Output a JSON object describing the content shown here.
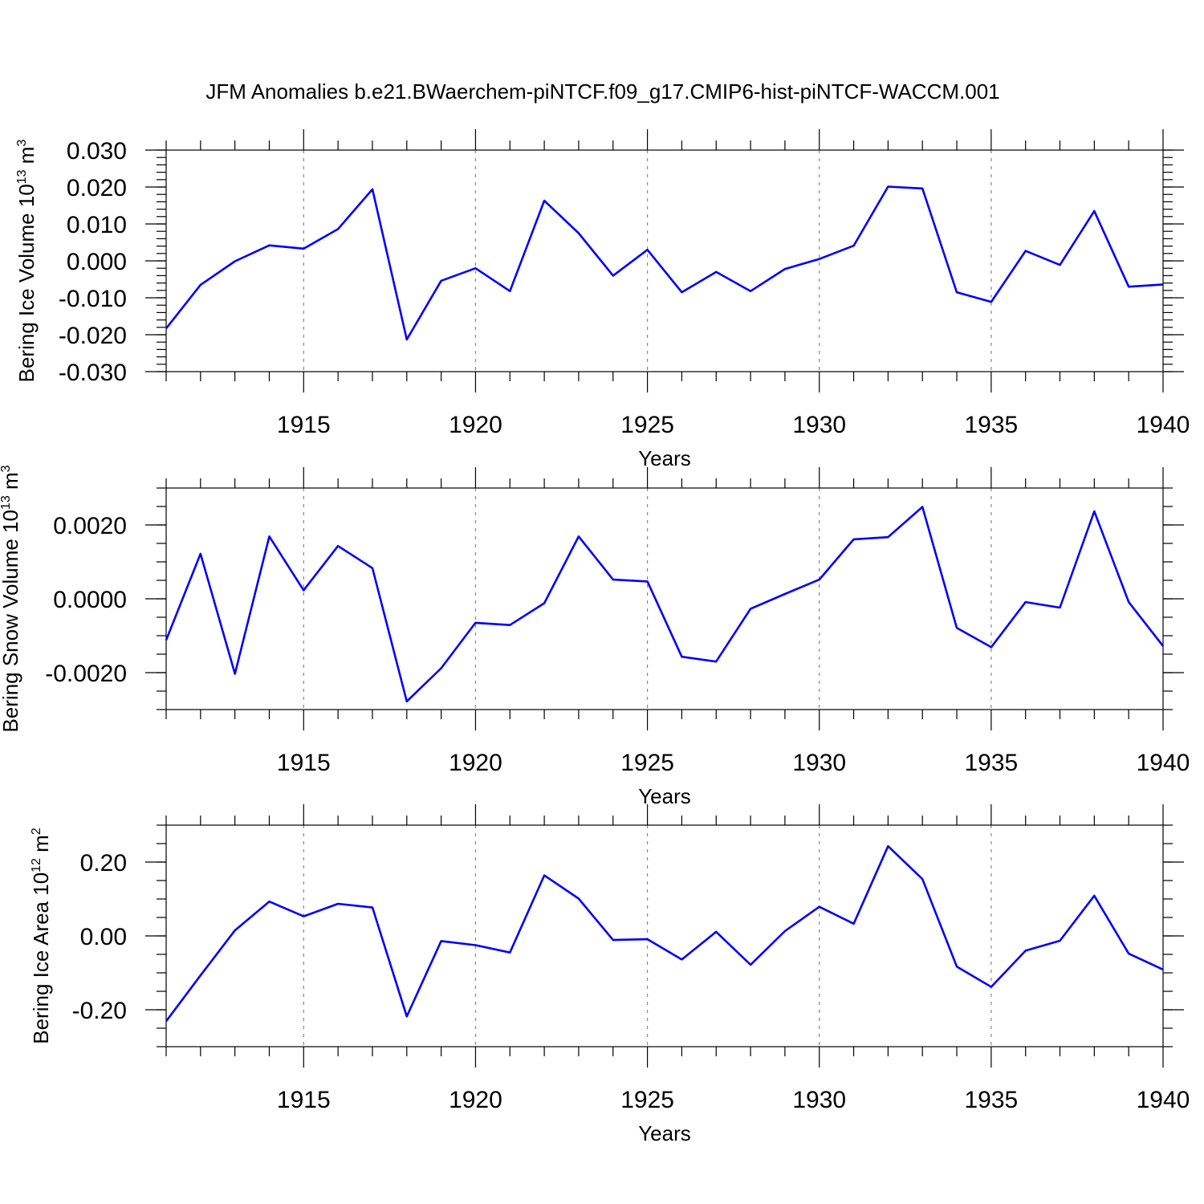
{
  "title": "JFM Anomalies b.e21.BWaerchem-piNTCF.f09_g17.CMIP6-hist-piNTCF-WACCM.001",
  "colors": {
    "line": "#0000ff",
    "grid": "#888888",
    "axis": "#000000"
  },
  "chart_data": [
    {
      "type": "line",
      "ylabel": "Bering Ice Volume 10",
      "ylabel_sup": "13",
      "ylabel_unit": " m",
      "ylabel_unit_sup": "3",
      "xlabel": "Years",
      "xlim": [
        1911,
        1940
      ],
      "ylim": [
        -0.03,
        0.03
      ],
      "yticks": [
        -0.03,
        -0.02,
        -0.01,
        0.0,
        0.01,
        0.02,
        0.03
      ],
      "ytick_labels": [
        "-0.030",
        "-0.020",
        "-0.010",
        "0.000",
        "0.010",
        "0.020",
        "0.030"
      ],
      "y_minor_step": 0.002,
      "xticks": [
        1915,
        1920,
        1925,
        1930,
        1935,
        1940
      ],
      "xtick_labels": [
        "1915",
        "1920",
        "1925",
        "1930",
        "1935",
        "1940"
      ],
      "grid": "x dashed",
      "x": [
        1911,
        1912,
        1913,
        1914,
        1915,
        1916,
        1917,
        1918,
        1919,
        1920,
        1921,
        1922,
        1923,
        1924,
        1925,
        1926,
        1927,
        1928,
        1929,
        1930,
        1931,
        1932,
        1933,
        1934,
        1935,
        1936,
        1937,
        1938,
        1939,
        1940
      ],
      "values": [
        -0.0183,
        -0.0065,
        -0.0001,
        0.0042,
        0.0033,
        0.0086,
        0.0194,
        -0.0213,
        -0.0054,
        -0.002,
        -0.0082,
        0.0163,
        0.0075,
        -0.004,
        0.003,
        -0.0085,
        -0.003,
        -0.0082,
        -0.0022,
        0.0005,
        0.0041,
        0.0201,
        0.0196,
        -0.0085,
        -0.0111,
        0.0027,
        -0.0011,
        0.0135,
        -0.007,
        -0.0064
      ]
    },
    {
      "type": "line",
      "ylabel": "Bering Snow Volume 10",
      "ylabel_sup": "13",
      "ylabel_unit": " m",
      "ylabel_unit_sup": "3",
      "xlabel": "Years",
      "xlim": [
        1911,
        1940
      ],
      "ylim": [
        -0.003,
        0.003
      ],
      "yticks": [
        -0.002,
        0.0,
        0.002
      ],
      "ytick_labels": [
        "-0.0020",
        "0.0000",
        "0.0020"
      ],
      "y_minor_step": 0.0005,
      "xticks": [
        1915,
        1920,
        1925,
        1930,
        1935,
        1940
      ],
      "xtick_labels": [
        "1915",
        "1920",
        "1925",
        "1930",
        "1935",
        "1940"
      ],
      "grid": "x dashed",
      "x": [
        1911,
        1912,
        1913,
        1914,
        1915,
        1916,
        1917,
        1918,
        1919,
        1920,
        1921,
        1922,
        1923,
        1924,
        1925,
        1926,
        1927,
        1928,
        1929,
        1930,
        1931,
        1932,
        1933,
        1934,
        1935,
        1936,
        1937,
        1938,
        1939,
        1940
      ],
      "values": [
        -0.00112,
        0.00122,
        -0.00203,
        0.00169,
        0.00023,
        0.00143,
        0.00083,
        -0.00278,
        -0.00188,
        -0.00065,
        -0.00071,
        -0.00012,
        0.00169,
        0.00052,
        0.00047,
        -0.00157,
        -0.0017,
        -0.00027,
        0.00013,
        0.00052,
        0.00161,
        0.00167,
        0.00249,
        -0.00079,
        -0.00131,
        -9e-05,
        -0.00024,
        0.00237,
        -9e-05,
        -0.00128
      ]
    },
    {
      "type": "line",
      "ylabel": "Bering Ice Area 10",
      "ylabel_sup": "12",
      "ylabel_unit": " m",
      "ylabel_unit_sup": "2",
      "xlabel": "Years",
      "xlim": [
        1911,
        1940
      ],
      "ylim": [
        -0.3,
        0.3
      ],
      "yticks": [
        -0.2,
        0.0,
        0.2
      ],
      "ytick_labels": [
        "-0.20",
        "0.00",
        "0.20"
      ],
      "y_minor_step": 0.05,
      "xticks": [
        1915,
        1920,
        1925,
        1930,
        1935,
        1940
      ],
      "xtick_labels": [
        "1915",
        "1920",
        "1925",
        "1930",
        "1935",
        "1940"
      ],
      "grid": "x dashed",
      "x": [
        1911,
        1912,
        1913,
        1914,
        1915,
        1916,
        1917,
        1918,
        1919,
        1920,
        1921,
        1922,
        1923,
        1924,
        1925,
        1926,
        1927,
        1928,
        1929,
        1930,
        1931,
        1932,
        1933,
        1934,
        1935,
        1936,
        1937,
        1938,
        1939,
        1940
      ],
      "values": [
        -0.231,
        -0.107,
        0.015,
        0.093,
        0.053,
        0.087,
        0.077,
        -0.218,
        -0.014,
        -0.025,
        -0.045,
        0.164,
        0.101,
        -0.011,
        -0.009,
        -0.064,
        0.011,
        -0.078,
        0.013,
        0.079,
        0.033,
        0.243,
        0.154,
        -0.083,
        -0.138,
        -0.04,
        -0.013,
        0.109,
        -0.048,
        -0.091
      ]
    }
  ]
}
